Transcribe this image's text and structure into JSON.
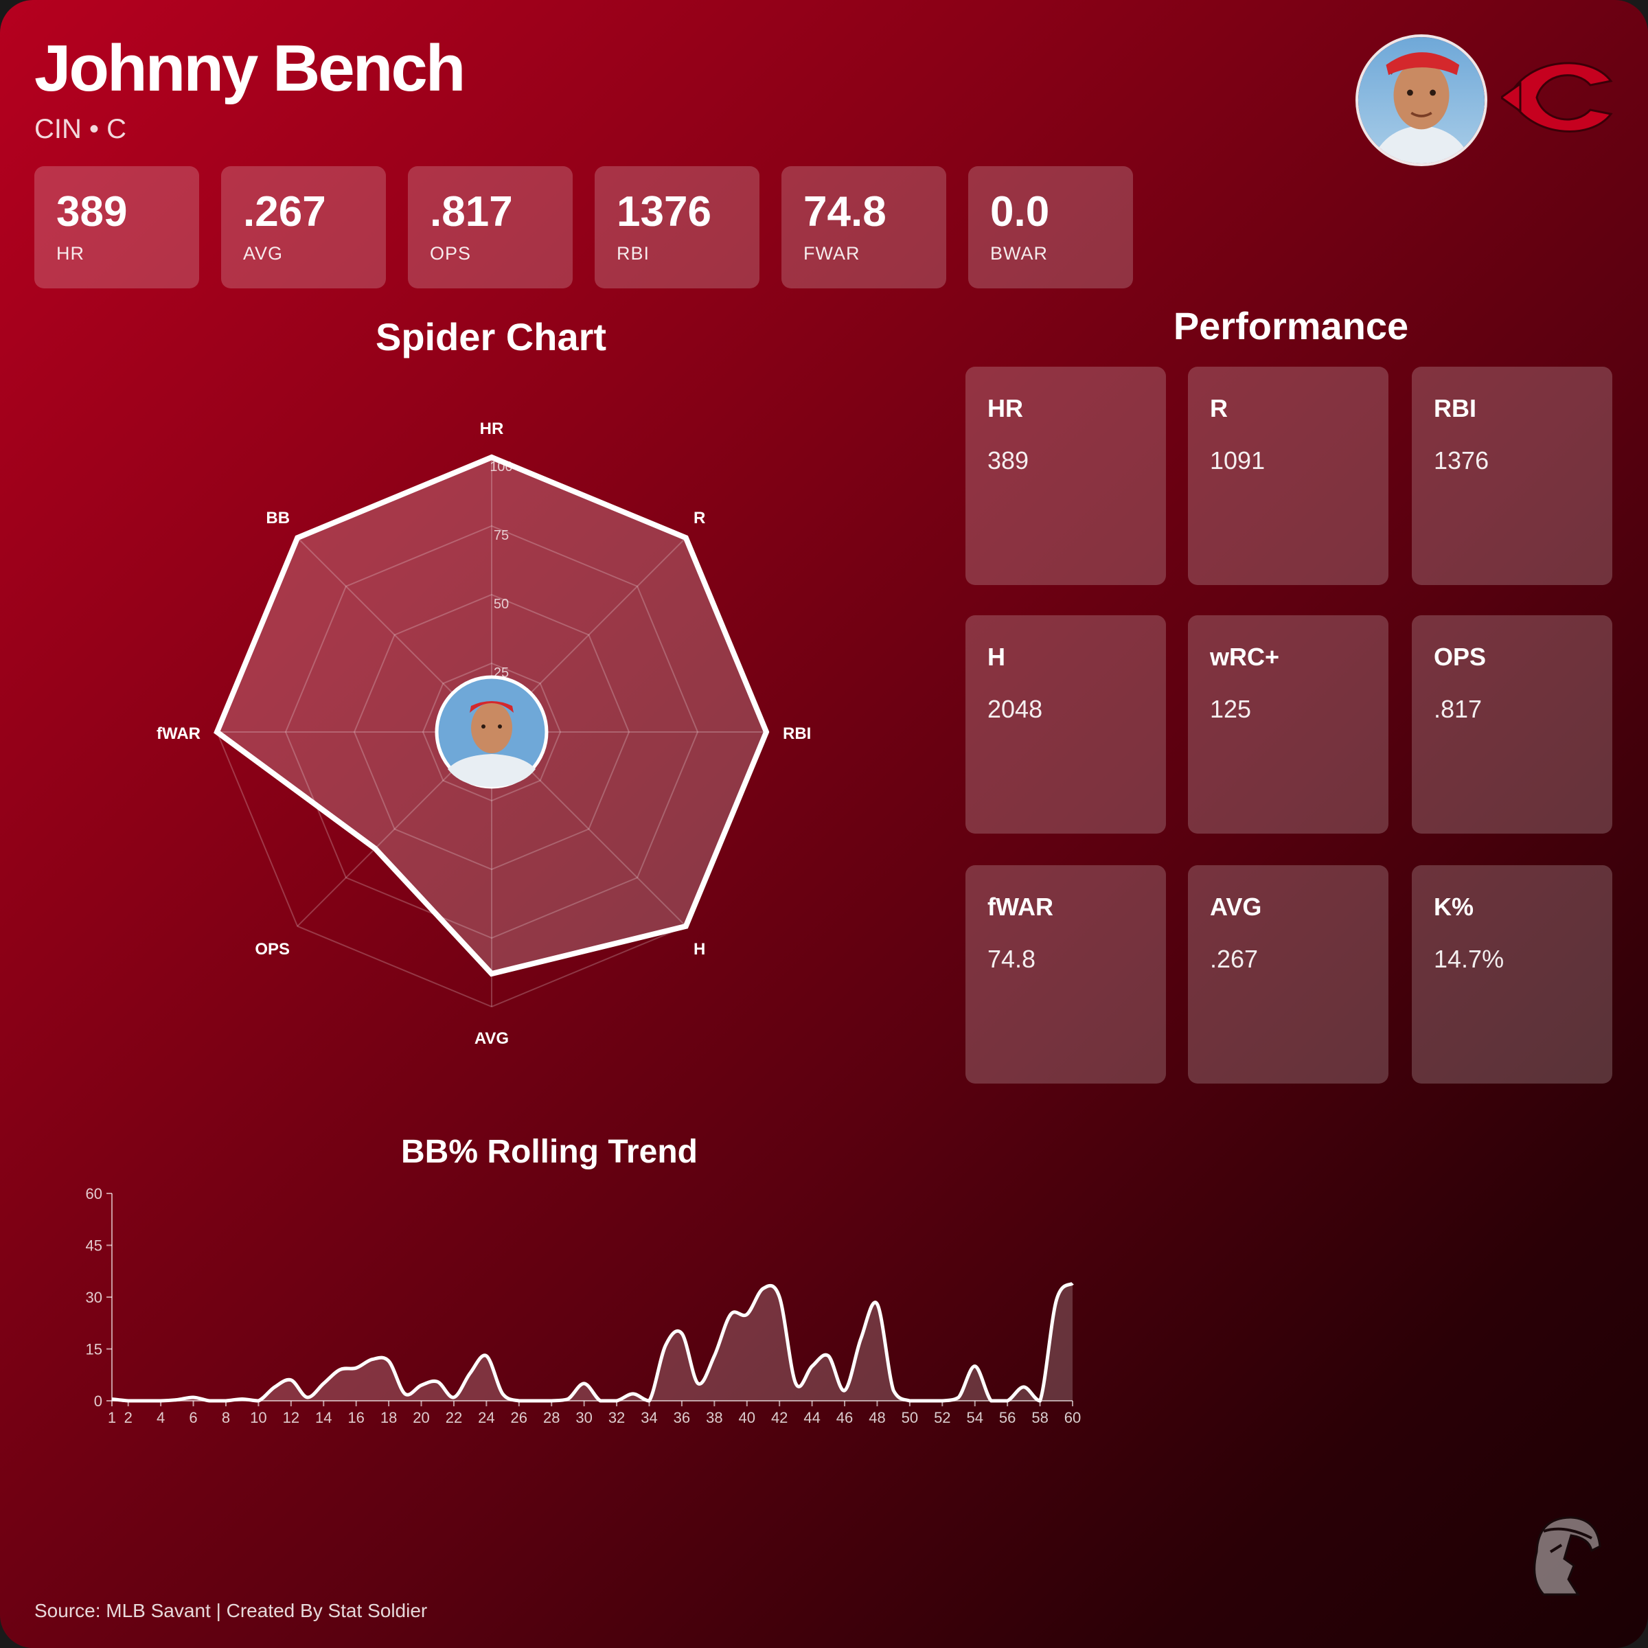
{
  "header": {
    "name": "Johnny Bench",
    "subtitle": "CIN • C"
  },
  "stat_cards": [
    {
      "value": "389",
      "label": "HR"
    },
    {
      "value": ".267",
      "label": "AVG"
    },
    {
      "value": ".817",
      "label": "OPS"
    },
    {
      "value": "1376",
      "label": "RBI"
    },
    {
      "value": "74.8",
      "label": "FWAR"
    },
    {
      "value": "0.0",
      "label": "BWAR"
    }
  ],
  "performance": {
    "title": "Performance",
    "cards": [
      {
        "label": "HR",
        "value": "389"
      },
      {
        "label": "R",
        "value": "1091"
      },
      {
        "label": "RBI",
        "value": "1376"
      },
      {
        "label": "H",
        "value": "2048"
      },
      {
        "label": "wRC+",
        "value": "125"
      },
      {
        "label": "OPS",
        "value": ".817"
      },
      {
        "label": "fWAR",
        "value": "74.8"
      },
      {
        "label": "AVG",
        "value": ".267"
      },
      {
        "label": "K%",
        "value": "14.7%"
      }
    ]
  },
  "footer": {
    "source": "Source: MLB Savant | Created By Stat Soldier"
  },
  "colors": {
    "accent": "#c6011f",
    "background_dark": "#1a0004",
    "line": "#ffffff"
  },
  "icons": {
    "team_logo": "reds-c-logo",
    "brand_logo": "soldier-helmet-logo",
    "avatar": "player-photo"
  },
  "chart_data": [
    {
      "type": "radar",
      "title": "Spider Chart",
      "axes": [
        "HR",
        "R",
        "RBI",
        "H",
        "AVG",
        "OPS",
        "fWAR",
        "BB"
      ],
      "values": [
        100,
        100,
        100,
        100,
        88,
        60,
        100,
        100
      ],
      "rlim": [
        0,
        100
      ],
      "rticks": [
        "25",
        "50",
        "75",
        "100"
      ]
    },
    {
      "type": "area",
      "title": "BB% Rolling Trend",
      "x": [
        1,
        2,
        3,
        4,
        5,
        6,
        7,
        8,
        9,
        10,
        11,
        12,
        13,
        14,
        15,
        16,
        17,
        18,
        19,
        20,
        21,
        22,
        23,
        24,
        25,
        26,
        27,
        28,
        29,
        30,
        31,
        32,
        33,
        34,
        35,
        36,
        37,
        38,
        39,
        40,
        41,
        42,
        43,
        44,
        45,
        46,
        47,
        48,
        49,
        50,
        51,
        52,
        53,
        54,
        55,
        56,
        57,
        58,
        59,
        60
      ],
      "values": [
        0.5,
        0,
        0,
        0,
        0.3,
        1,
        0,
        0,
        0.5,
        0,
        4,
        6,
        1,
        5,
        9,
        9.5,
        12,
        11.5,
        2,
        4.5,
        5.5,
        1,
        8,
        13,
        2,
        0,
        0,
        0,
        0.5,
        5,
        0,
        0,
        2,
        0,
        16,
        19.5,
        5,
        13,
        25,
        25,
        32.5,
        30,
        5,
        10,
        13,
        3,
        18,
        28,
        3,
        0,
        0,
        0,
        1,
        10,
        0,
        0,
        4,
        0,
        29,
        34
      ],
      "xticks": [
        "1",
        "2",
        "4",
        "6",
        "8",
        "10",
        "12",
        "14",
        "16",
        "18",
        "20",
        "22",
        "24",
        "26",
        "28",
        "30",
        "32",
        "34",
        "36",
        "38",
        "40",
        "42",
        "44",
        "46",
        "48",
        "50",
        "52",
        "54",
        "56",
        "58",
        "60"
      ],
      "yticks": [
        "0",
        "15",
        "30",
        "45",
        "60"
      ],
      "ylim": [
        0,
        60
      ]
    }
  ]
}
